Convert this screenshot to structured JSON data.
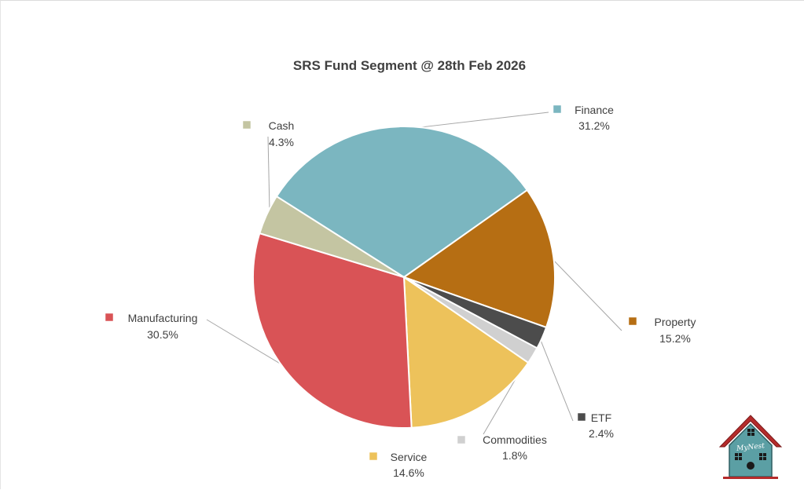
{
  "chart_data": {
    "type": "pie",
    "title": "SRS Fund Segment @ 28th Feb 2026",
    "slices": [
      {
        "label": "Finance",
        "value": 31.2,
        "display": "31.2%",
        "color": "#7bb6c0"
      },
      {
        "label": "Property",
        "value": 15.2,
        "display": "15.2%",
        "color": "#b66e13"
      },
      {
        "label": "ETF",
        "value": 2.4,
        "display": "2.4%",
        "color": "#4c4c4c"
      },
      {
        "label": "Commodities",
        "value": 1.8,
        "display": "1.8%",
        "color": "#d0d0d0"
      },
      {
        "label": "Service",
        "value": 14.6,
        "display": "14.6%",
        "color": "#edc25b"
      },
      {
        "label": "Manufacturing",
        "value": 30.5,
        "display": "30.5%",
        "color": "#d95356"
      },
      {
        "label": "Cash",
        "value": 4.3,
        "display": "4.3%",
        "color": "#c4c5a2"
      }
    ],
    "legend": "none",
    "data_labels": "outside with leader lines"
  },
  "logo": {
    "text": "MyNest",
    "roof_color": "#b52b2b",
    "body_color": "#5b9fa4"
  }
}
